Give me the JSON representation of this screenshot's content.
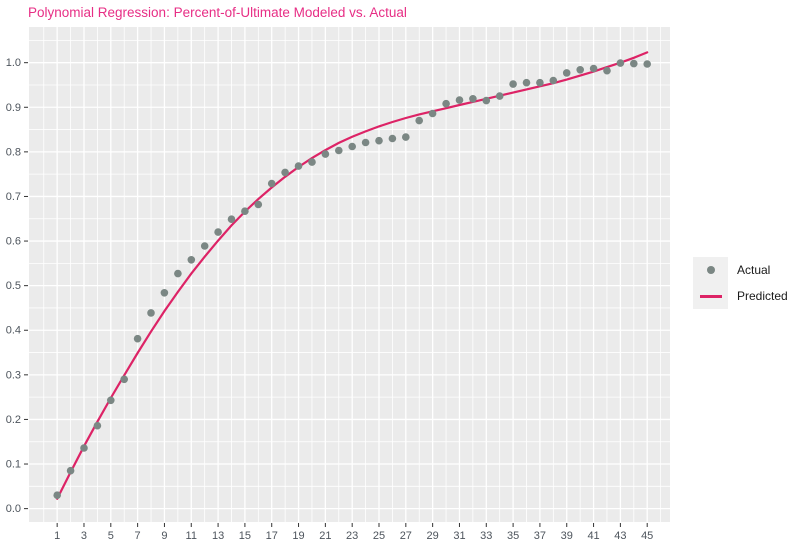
{
  "title": "Polynomial Regression: Percent-of-Ultimate Modeled vs. Actual",
  "legend": {
    "position": "right",
    "items": [
      {
        "label": "Actual",
        "marker": "point"
      },
      {
        "label": "Predicted",
        "marker": "line"
      }
    ]
  },
  "chart_data": {
    "type": "scatter",
    "title": "Polynomial Regression: Percent-of-Ultimate Modeled vs. Actual",
    "xlabel": "",
    "ylabel": "",
    "x": [
      1,
      2,
      3,
      4,
      5,
      6,
      7,
      8,
      9,
      10,
      11,
      12,
      13,
      14,
      15,
      16,
      17,
      18,
      19,
      20,
      21,
      22,
      23,
      24,
      25,
      26,
      27,
      28,
      29,
      30,
      31,
      32,
      33,
      34,
      35,
      36,
      37,
      38,
      39,
      40,
      41,
      42,
      43,
      44,
      45
    ],
    "series": [
      {
        "name": "Actual",
        "type": "scatter",
        "color": "#7b8784",
        "values": [
          0.03,
          0.085,
          0.136,
          0.186,
          0.243,
          0.29,
          0.381,
          0.439,
          0.484,
          0.527,
          0.558,
          0.589,
          0.62,
          0.649,
          0.667,
          0.682,
          0.729,
          0.754,
          0.768,
          0.777,
          0.795,
          0.803,
          0.812,
          0.821,
          0.825,
          0.83,
          0.833,
          0.87,
          0.886,
          0.908,
          0.916,
          0.919,
          0.915,
          0.925,
          0.952,
          0.955,
          0.955,
          0.96,
          0.977,
          0.984,
          0.987,
          0.982,
          0.999,
          0.998,
          0.997
        ]
      },
      {
        "name": "Predicted",
        "type": "line",
        "color": "#dd2366",
        "values": [
          0.022,
          0.082,
          0.14,
          0.195,
          0.248,
          0.299,
          0.349,
          0.397,
          0.443,
          0.486,
          0.527,
          0.565,
          0.601,
          0.635,
          0.666,
          0.694,
          0.72,
          0.744,
          0.766,
          0.786,
          0.804,
          0.82,
          0.834,
          0.846,
          0.857,
          0.867,
          0.876,
          0.884,
          0.891,
          0.898,
          0.905,
          0.912,
          0.919,
          0.926,
          0.933,
          0.94,
          0.947,
          0.954,
          0.962,
          0.971,
          0.98,
          0.99,
          1.0,
          1.011,
          1.023
        ]
      }
    ],
    "x_ticks": [
      1,
      3,
      5,
      7,
      9,
      11,
      13,
      15,
      17,
      19,
      21,
      23,
      25,
      27,
      29,
      31,
      33,
      35,
      37,
      39,
      41,
      43,
      45
    ],
    "y_ticks": [
      0.0,
      0.1,
      0.2,
      0.3,
      0.4,
      0.5,
      0.6,
      0.7,
      0.8,
      0.9,
      1.0
    ],
    "xlim": [
      -1.1,
      46.7
    ],
    "ylim": [
      -0.03,
      1.08
    ],
    "grid": true,
    "legend_position": "right",
    "point_radius": 3.8,
    "line_width": 2.2,
    "colors": {
      "title": "#e72e85",
      "panel_bg": "#ebebeb",
      "grid": "#ffffff",
      "tick_text": "#4d545c",
      "tick_mark": "#333333",
      "legend_key_bg": "#f0f0f0",
      "legend_text": "#1a1a1a",
      "figure_bg": "#ffffff"
    }
  }
}
